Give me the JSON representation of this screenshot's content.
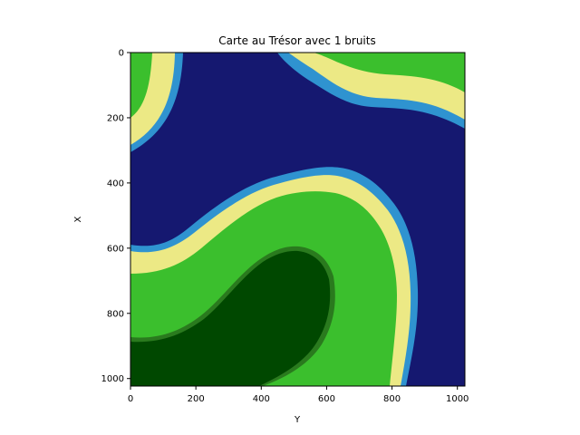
{
  "title": "Carte au Trésor avec 1 bruits",
  "xlabel": "Y",
  "ylabel": "X",
  "map": {
    "type": "heatmap",
    "extent": {
      "x": [
        0,
        1023
      ],
      "y": [
        0,
        1023
      ]
    },
    "y_axis_inverted": true,
    "colors": {
      "deep_water": "#151870",
      "shallow_water": "#1a6fb8",
      "coast_edge": "#2f93d0",
      "sand": "#ece985",
      "grass": "#3bbf2d",
      "forest": "#004800",
      "forest_edge": "#2a7a1e"
    },
    "regions": [
      {
        "name": "water",
        "color_key": "deep_water"
      },
      {
        "name": "sand",
        "color_key": "sand"
      },
      {
        "name": "grass",
        "color_key": "grass"
      },
      {
        "name": "forest",
        "color_key": "forest"
      }
    ]
  },
  "x_ticks": [
    "0",
    "200",
    "400",
    "600",
    "800",
    "1000"
  ],
  "y_ticks": [
    "0",
    "200",
    "400",
    "600",
    "800",
    "1000"
  ]
}
